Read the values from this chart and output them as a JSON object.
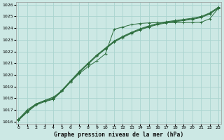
{
  "bg_color": "#cce8e4",
  "grid_color": "#aad4cf",
  "line_color": "#2d6e3e",
  "ylim": [
    1015.8,
    1026.2
  ],
  "xlim": [
    -0.3,
    23.3
  ],
  "xlabel": "Graphe pression niveau de la mer (hPa)",
  "yticks": [
    1016,
    1017,
    1018,
    1019,
    1020,
    1021,
    1022,
    1023,
    1024,
    1025,
    1026
  ],
  "xticks": [
    0,
    1,
    2,
    3,
    4,
    5,
    6,
    7,
    8,
    9,
    10,
    11,
    12,
    13,
    14,
    15,
    16,
    17,
    18,
    19,
    20,
    21,
    22,
    23
  ],
  "line_peak": [
    1016.2,
    1017.0,
    1017.5,
    1017.8,
    1018.1,
    1018.6,
    1019.4,
    1020.1,
    1020.7,
    1021.2,
    1021.8,
    1023.9,
    1024.1,
    1024.3,
    1024.4,
    1024.45,
    1024.47,
    1024.48,
    1024.48,
    1024.48,
    1024.48,
    1024.5,
    1024.8,
    1025.7
  ],
  "line_a": [
    1016.1,
    1016.8,
    1017.4,
    1017.7,
    1017.9,
    1018.6,
    1019.4,
    1020.2,
    1020.9,
    1021.6,
    1022.2,
    1022.8,
    1023.2,
    1023.55,
    1023.85,
    1024.1,
    1024.3,
    1024.45,
    1024.55,
    1024.65,
    1024.75,
    1024.9,
    1025.2,
    1025.7
  ],
  "line_b": [
    1016.15,
    1016.85,
    1017.45,
    1017.75,
    1017.95,
    1018.65,
    1019.45,
    1020.25,
    1020.95,
    1021.65,
    1022.25,
    1022.85,
    1023.25,
    1023.6,
    1023.9,
    1024.15,
    1024.35,
    1024.5,
    1024.6,
    1024.7,
    1024.8,
    1024.95,
    1025.25,
    1025.75
  ],
  "line_c": [
    1016.2,
    1016.9,
    1017.5,
    1017.8,
    1018.0,
    1018.7,
    1019.5,
    1020.3,
    1021.0,
    1021.7,
    1022.3,
    1022.9,
    1023.3,
    1023.65,
    1023.95,
    1024.2,
    1024.4,
    1024.55,
    1024.65,
    1024.75,
    1024.85,
    1025.0,
    1025.3,
    1025.8
  ]
}
